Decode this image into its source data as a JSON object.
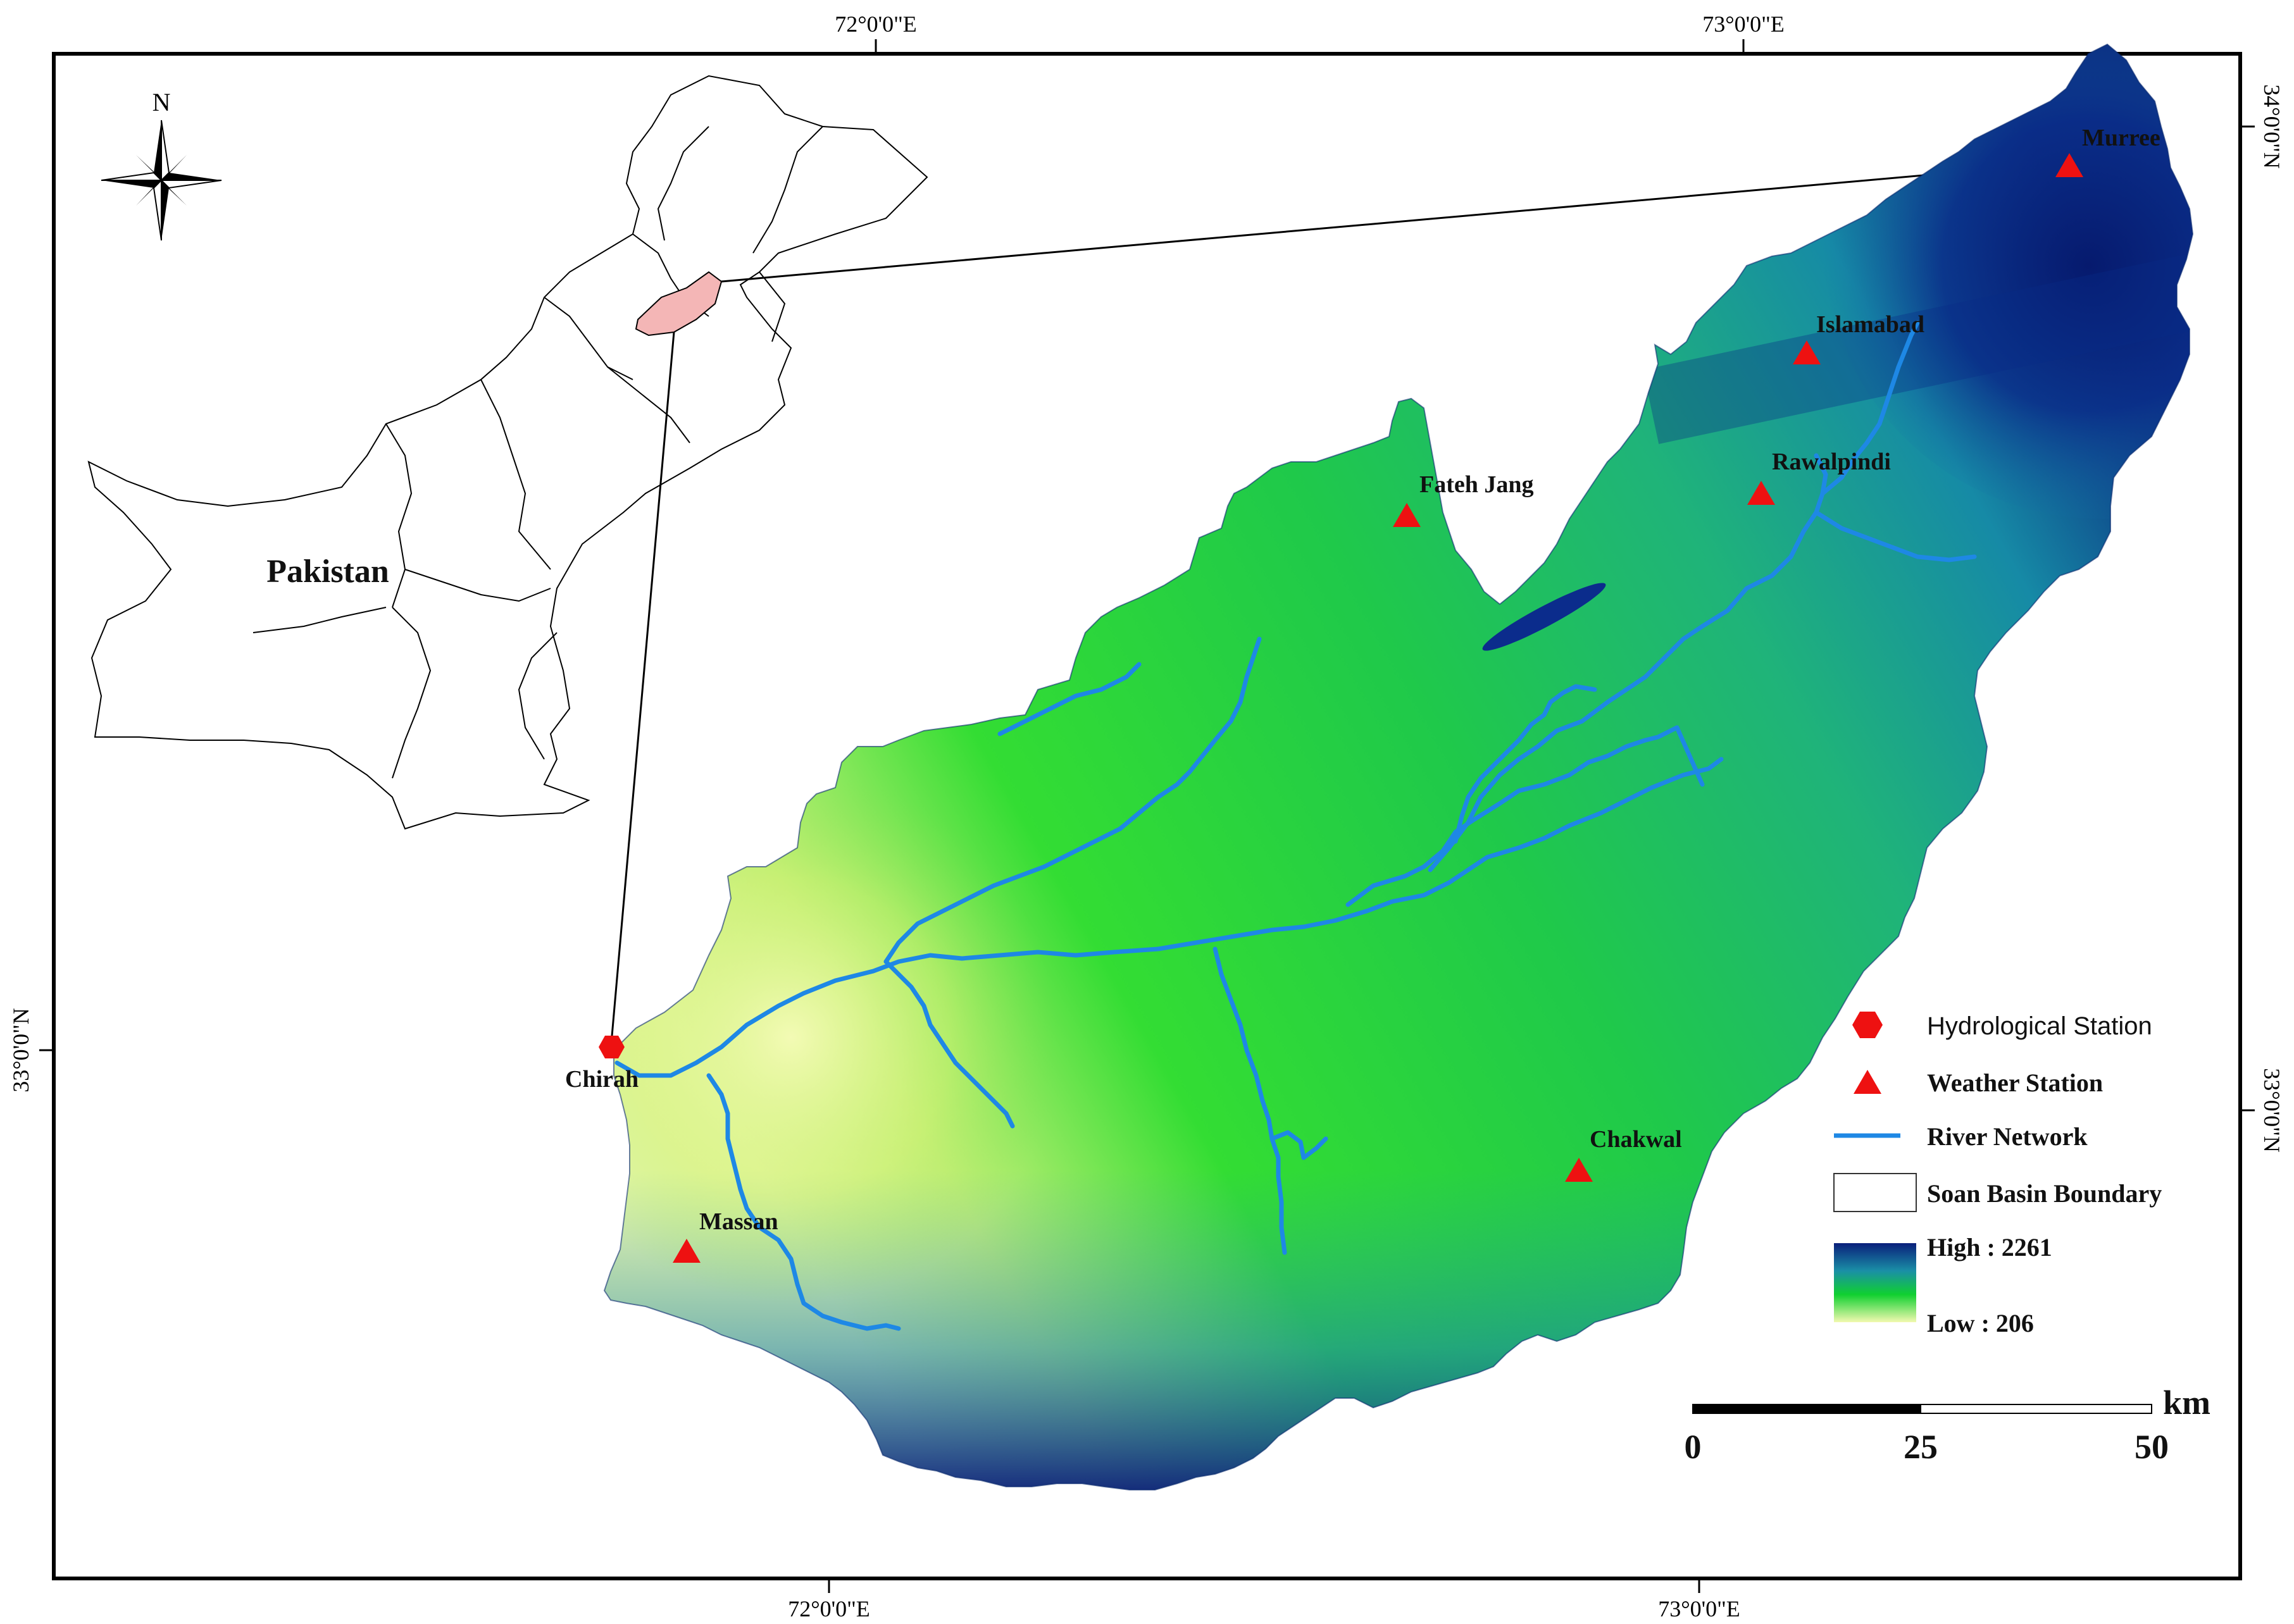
{
  "map": {
    "graticule": {
      "top_lon_labels": [
        "72°0'0\"E",
        "73°0'0\"E"
      ],
      "bottom_lon_labels": [
        "72°0'0\"E",
        "73°0'0\"E"
      ],
      "left_lat_labels": [
        "33°0'0\"N"
      ],
      "right_lat_labels": [
        "34°0'0\"N",
        "33°0'0\"N"
      ]
    },
    "north_arrow": {
      "label": "N",
      "icon": "north-arrow-compass-icon"
    },
    "inset": {
      "country_label": "Pakistan",
      "highlight_color": "#f4b6b6"
    },
    "stations": {
      "hydrological": [
        {
          "name": "Chirah"
        }
      ],
      "weather": [
        {
          "name": "Murree"
        },
        {
          "name": "Islamabad"
        },
        {
          "name": "Rawalpindi"
        },
        {
          "name": "Fateh Jang"
        },
        {
          "name": "Chakwal"
        },
        {
          "name": "Massan"
        }
      ]
    },
    "legend": {
      "hydrological_station": "Hydrological Station",
      "weather_station": "Weather Station",
      "river_network": "River Network",
      "basin_boundary": "Soan Basin Boundary",
      "elevation_high": "High : 2261",
      "elevation_low": "Low : 206"
    },
    "scale_bar": {
      "unit": "km",
      "ticks": [
        "0",
        "25",
        "50"
      ]
    },
    "colors": {
      "station_marker": "#ee1111",
      "river": "#1e88e5",
      "elev_high": "#0a1f7a",
      "elev_mid": "#00cc33",
      "elev_low": "#eef7a8"
    }
  }
}
